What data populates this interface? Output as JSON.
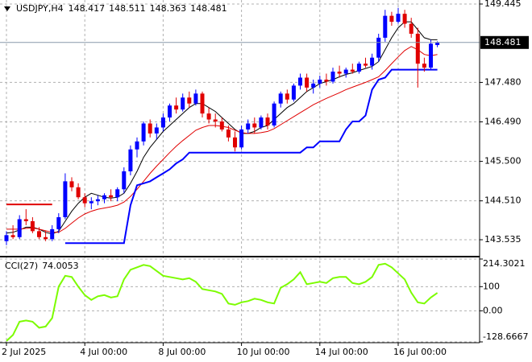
{
  "chart_data": [
    {
      "type": "candlestick",
      "title": "USDJPY,H4",
      "ylim": [
        143.132,
        149.546
      ],
      "yticks": [
        149.445,
        {
          "value": 147.48,
          "label": "147.480"
        },
        {
          "value": 146.49,
          "label": "146.490"
        },
        {
          "value": 145.5,
          "label": "145.500"
        },
        {
          "value": 144.51,
          "label": "144.510"
        },
        143.535
      ],
      "xticks": [
        {
          "value": 0,
          "label": "2 Jul 2025"
        },
        {
          "value": 12,
          "label": "4 Jul 00:00"
        },
        {
          "value": 24,
          "label": "8 Jul 00:00"
        },
        {
          "value": 36,
          "label": "10 Jul 00:00"
        },
        {
          "value": 48,
          "label": "14 Jul 00:00"
        },
        {
          "value": 60,
          "label": "16 Jul 00:00"
        }
      ],
      "grid": true,
      "up_color": "#0000ff",
      "down_color": "#e00000",
      "open": [
        143.5,
        143.65,
        143.6,
        144.05,
        144.0,
        143.75,
        143.6,
        143.55,
        143.8,
        144.1,
        145.0,
        144.85,
        144.6,
        144.45,
        144.5,
        144.55,
        144.65,
        144.6,
        144.8,
        145.25,
        145.8,
        146.0,
        146.45,
        146.2,
        146.35,
        146.6,
        146.9,
        146.8,
        147.1,
        146.95,
        147.2,
        146.7,
        146.55,
        146.5,
        146.3,
        146.1,
        145.85,
        146.3,
        146.45,
        146.35,
        146.6,
        146.4,
        146.95,
        147.2,
        147.05,
        147.4,
        147.6,
        147.35,
        147.45,
        147.55,
        147.5,
        147.75,
        147.7,
        147.8,
        147.75,
        147.95,
        147.9,
        148.1,
        148.6,
        149.15,
        149.0,
        149.2,
        148.95,
        148.7,
        147.95,
        147.85,
        148.417
      ],
      "high": [
        143.75,
        143.9,
        144.15,
        144.3,
        144.1,
        143.85,
        143.75,
        143.9,
        144.2,
        145.2,
        145.1,
        144.95,
        144.7,
        144.6,
        144.65,
        144.7,
        144.8,
        144.85,
        145.35,
        145.9,
        146.1,
        146.5,
        146.55,
        146.45,
        146.7,
        146.95,
        147.1,
        147.2,
        147.25,
        147.3,
        147.25,
        146.85,
        146.7,
        146.6,
        146.4,
        146.25,
        146.4,
        146.55,
        146.6,
        146.65,
        146.7,
        147.0,
        147.25,
        147.3,
        147.45,
        147.7,
        147.7,
        147.55,
        147.65,
        147.7,
        147.85,
        147.9,
        147.85,
        147.95,
        148.0,
        148.1,
        148.2,
        148.7,
        149.3,
        149.25,
        149.35,
        149.3,
        149.1,
        148.85,
        148.1,
        148.55,
        148.511
      ],
      "low": [
        143.4,
        143.55,
        143.55,
        143.9,
        143.7,
        143.55,
        143.5,
        143.5,
        143.7,
        144.05,
        144.75,
        144.55,
        144.35,
        144.3,
        144.4,
        144.45,
        144.5,
        144.5,
        144.7,
        145.15,
        145.6,
        145.9,
        146.1,
        146.05,
        146.25,
        146.5,
        146.7,
        146.75,
        146.85,
        146.9,
        146.6,
        146.45,
        146.35,
        146.25,
        146.0,
        145.75,
        145.8,
        146.2,
        146.2,
        146.3,
        146.3,
        146.35,
        146.85,
        146.95,
        147.0,
        147.3,
        147.25,
        147.2,
        147.35,
        147.4,
        147.45,
        147.6,
        147.6,
        147.7,
        147.7,
        147.85,
        147.8,
        148.0,
        148.5,
        148.9,
        148.95,
        148.85,
        148.6,
        147.35,
        147.75,
        147.8,
        148.363
      ],
      "close": [
        143.65,
        143.6,
        144.05,
        144.0,
        143.75,
        143.6,
        143.55,
        143.8,
        144.1,
        145.0,
        144.85,
        144.6,
        144.45,
        144.5,
        144.55,
        144.65,
        144.6,
        144.8,
        145.25,
        145.8,
        146.0,
        146.45,
        146.2,
        146.35,
        146.6,
        146.9,
        146.8,
        147.1,
        146.95,
        147.2,
        146.7,
        146.55,
        146.5,
        146.3,
        146.1,
        145.85,
        146.3,
        146.45,
        146.35,
        146.6,
        146.4,
        146.95,
        147.2,
        147.05,
        147.4,
        147.6,
        147.35,
        147.45,
        147.55,
        147.5,
        147.75,
        147.7,
        147.8,
        147.75,
        147.95,
        147.9,
        148.1,
        148.6,
        149.15,
        149.0,
        149.2,
        148.95,
        148.7,
        147.95,
        147.85,
        148.45,
        148.481
      ],
      "series": [
        {
          "color": "#000000",
          "width": 1,
          "values": [
            143.7,
            143.72,
            143.78,
            143.85,
            143.85,
            143.8,
            143.72,
            143.68,
            143.75,
            144.0,
            144.25,
            144.45,
            144.6,
            144.7,
            144.65,
            144.6,
            144.58,
            144.6,
            144.7,
            144.95,
            145.25,
            145.6,
            145.85,
            146.05,
            146.25,
            146.4,
            146.55,
            146.7,
            146.85,
            146.95,
            146.95,
            146.85,
            146.75,
            146.6,
            146.45,
            146.3,
            146.2,
            146.2,
            146.25,
            146.35,
            146.4,
            146.55,
            146.7,
            146.85,
            146.95,
            147.1,
            147.25,
            147.35,
            147.45,
            147.5,
            147.55,
            147.62,
            147.68,
            147.72,
            147.78,
            147.83,
            147.88,
            148.0,
            148.3,
            148.6,
            148.85,
            149.0,
            149.0,
            148.8,
            148.6,
            148.55,
            148.55
          ]
        },
        {
          "color": "#e00000",
          "width": 1,
          "values": [
            143.8,
            143.8,
            143.8,
            143.82,
            143.83,
            143.8,
            143.76,
            143.72,
            143.72,
            143.82,
            143.95,
            144.08,
            144.18,
            144.25,
            144.3,
            144.33,
            144.36,
            144.4,
            144.48,
            144.62,
            144.8,
            145.0,
            145.2,
            145.38,
            145.55,
            145.72,
            145.88,
            146.02,
            146.15,
            146.28,
            146.35,
            146.4,
            146.4,
            146.38,
            146.35,
            146.28,
            146.22,
            146.2,
            146.2,
            146.22,
            146.25,
            146.32,
            146.42,
            146.52,
            146.62,
            146.72,
            146.82,
            146.92,
            147.0,
            147.08,
            147.15,
            147.22,
            147.3,
            147.36,
            147.42,
            147.48,
            147.55,
            147.62,
            147.78,
            147.95,
            148.12,
            148.28,
            148.38,
            148.3,
            148.18,
            148.15,
            148.18
          ]
        },
        {
          "color": "#0000ff",
          "width": 2,
          "values": [
            null,
            null,
            null,
            null,
            null,
            null,
            null,
            null,
            null,
            143.45,
            143.45,
            143.45,
            143.45,
            143.45,
            143.45,
            143.45,
            143.45,
            143.45,
            143.45,
            144.4,
            144.9,
            144.95,
            145.0,
            145.1,
            145.2,
            145.3,
            145.45,
            145.55,
            145.72,
            145.72,
            145.72,
            145.72,
            145.72,
            145.72,
            145.72,
            145.72,
            145.72,
            145.72,
            145.72,
            145.72,
            145.72,
            145.72,
            145.72,
            145.72,
            145.72,
            145.72,
            145.85,
            145.85,
            146.0,
            146.0,
            146.0,
            146.0,
            146.3,
            146.5,
            146.5,
            146.65,
            147.3,
            147.55,
            147.6,
            147.8,
            147.8,
            147.8,
            147.8,
            147.8,
            147.8,
            147.8,
            147.8
          ]
        },
        {
          "color": "#e00000",
          "width": 2,
          "values": [
            144.42,
            144.42,
            144.42,
            144.42,
            144.42,
            144.42,
            144.42,
            144.42,
            null,
            null,
            null,
            null,
            null,
            null,
            null,
            null,
            null,
            null,
            null,
            null,
            null,
            null,
            null,
            null,
            null,
            null,
            null,
            null,
            null,
            null,
            null,
            null,
            null,
            null,
            null,
            null,
            null,
            null,
            null,
            null,
            null,
            null,
            null,
            null,
            null,
            null,
            null,
            null,
            null,
            null,
            null,
            null,
            null,
            null,
            null,
            null,
            null,
            null,
            null,
            null,
            null,
            null,
            null,
            null,
            null,
            null,
            null
          ]
        }
      ]
    },
    {
      "type": "line",
      "title": "CCI(27)",
      "ylim": [
        -128.6667,
        214.3021
      ],
      "yticks": [
        214.3021,
        100,
        {
          "value": 0,
          "label": "0.00"
        },
        -128.6667
      ],
      "series": [
        {
          "color": "#7cfc00",
          "width": 2,
          "values": [
            -125,
            -100,
            -45,
            -40,
            -45,
            -70,
            -65,
            -30,
            100,
            145,
            140,
            100,
            65,
            45,
            60,
            65,
            55,
            60,
            130,
            170,
            180,
            190,
            185,
            165,
            145,
            140,
            135,
            130,
            135,
            120,
            90,
            85,
            80,
            70,
            30,
            25,
            35,
            40,
            50,
            45,
            35,
            30,
            95,
            110,
            130,
            160,
            110,
            115,
            120,
            115,
            135,
            140,
            140,
            115,
            110,
            120,
            140,
            190,
            195,
            180,
            155,
            130,
            75,
            35,
            30,
            55,
            74.0053
          ]
        }
      ]
    }
  ]
}
